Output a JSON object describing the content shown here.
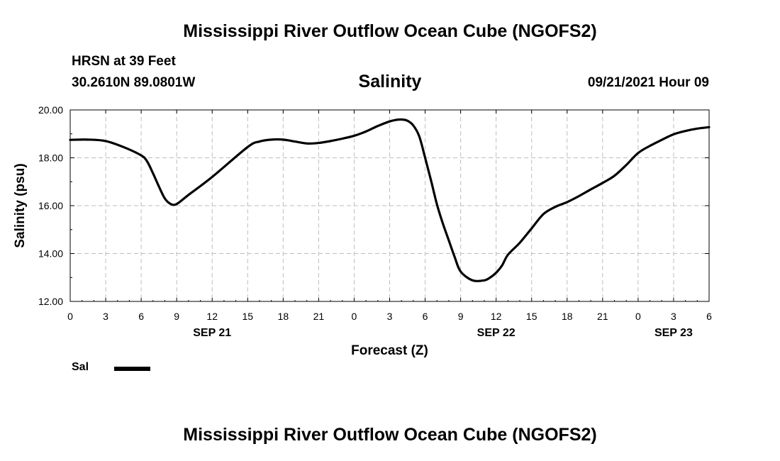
{
  "header": {
    "title": "Mississippi River Outflow Ocean Cube (NGOFS2)",
    "station": "HRSN at 39 Feet",
    "coordinates": "30.2610N  89.0801W",
    "chart_title": "Salinity",
    "datetime": "09/21/2021 Hour 09"
  },
  "footer": {
    "title": "Mississippi River Outflow Ocean Cube (NGOFS2)"
  },
  "legend": {
    "label": "Sal",
    "color": "#000000"
  },
  "chart_data": {
    "type": "line",
    "title": "Salinity",
    "xlabel": "Forecast (Z)",
    "ylabel": "Salinity (psu)",
    "xlim": [
      0,
      54
    ],
    "ylim": [
      12,
      20
    ],
    "grid": true,
    "legend_position": "bottom-left",
    "x_ticks": [
      0,
      3,
      6,
      9,
      12,
      15,
      18,
      21,
      24,
      27,
      30,
      33,
      36,
      39,
      42,
      45,
      48,
      51,
      54
    ],
    "x_tick_labels": [
      "0",
      "3",
      "6",
      "9",
      "12",
      "15",
      "18",
      "21",
      "0",
      "3",
      "6",
      "9",
      "12",
      "15",
      "18",
      "21",
      "0",
      "3",
      "6"
    ],
    "y_ticks": [
      12,
      14,
      16,
      18,
      20
    ],
    "y_tick_labels": [
      "12.00",
      "14.00",
      "16.00",
      "18.00",
      "20.00"
    ],
    "date_labels": [
      {
        "x": 12,
        "label": "SEP 21"
      },
      {
        "x": 36,
        "label": "SEP 22"
      },
      {
        "x": 51,
        "label": "SEP 23"
      }
    ],
    "series": [
      {
        "name": "Sal",
        "color": "#000000",
        "x": [
          0,
          1.5,
          3,
          4.5,
          6,
          6.5,
          7,
          7.5,
          8,
          8.5,
          9,
          10,
          12,
          15,
          16,
          17,
          18,
          19,
          20,
          21,
          22,
          23,
          24,
          25,
          26,
          27,
          27.5,
          28,
          28.5,
          29,
          29.5,
          30,
          30.5,
          31,
          31.5,
          32,
          32.5,
          33,
          34,
          35,
          35.5,
          36,
          36.5,
          37,
          38,
          39,
          40,
          41,
          42,
          43,
          44,
          45,
          46,
          47,
          48,
          49,
          50,
          51,
          52,
          53,
          54
        ],
        "values": [
          18.75,
          18.76,
          18.7,
          18.45,
          18.1,
          17.85,
          17.35,
          16.8,
          16.3,
          16.07,
          16.07,
          16.45,
          17.2,
          18.45,
          18.68,
          18.76,
          18.76,
          18.68,
          18.6,
          18.62,
          18.7,
          18.8,
          18.92,
          19.1,
          19.33,
          19.52,
          19.58,
          19.6,
          19.55,
          19.35,
          18.9,
          18.0,
          17.05,
          16.05,
          15.25,
          14.55,
          13.85,
          13.25,
          12.88,
          12.88,
          13.0,
          13.2,
          13.5,
          13.95,
          14.45,
          15.05,
          15.65,
          15.95,
          16.15,
          16.4,
          16.68,
          16.95,
          17.25,
          17.7,
          18.2,
          18.5,
          18.75,
          18.98,
          19.12,
          19.22,
          19.28
        ]
      }
    ]
  }
}
